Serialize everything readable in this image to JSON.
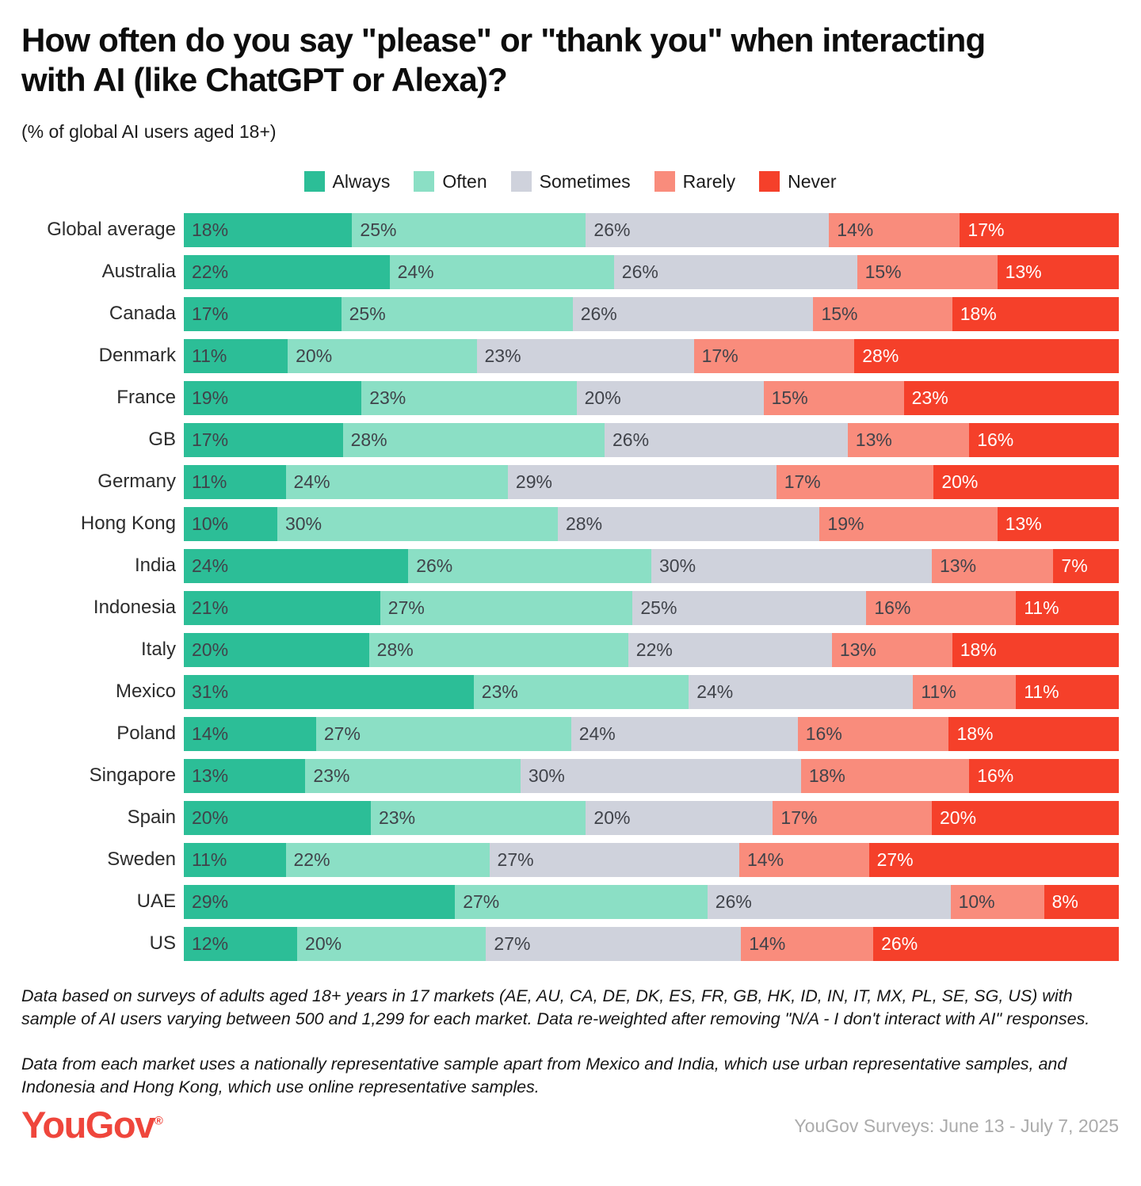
{
  "title": "How often do you say \"please\" or \"thank you\" when interacting with AI (like ChatGPT or Alexa)?",
  "subtitle": "(% of global AI users aged 18+)",
  "legend": {
    "items": [
      {
        "label": "Always",
        "color": "#2cbe97"
      },
      {
        "label": "Often",
        "color": "#8bdfc5"
      },
      {
        "label": "Sometimes",
        "color": "#cfd2dc"
      },
      {
        "label": "Rarely",
        "color": "#f98c7c"
      },
      {
        "label": "Never",
        "color": "#f5402a"
      }
    ]
  },
  "chart_data": {
    "type": "bar",
    "stacked": true,
    "orientation": "horizontal",
    "unit": "%",
    "xlim": [
      0,
      100
    ],
    "series_labels": [
      "Always",
      "Often",
      "Sometimes",
      "Rarely",
      "Never"
    ],
    "colors": [
      "#2cbe97",
      "#8bdfc5",
      "#cfd2dc",
      "#f98c7c",
      "#f5402a"
    ],
    "light_text_series_index": 4,
    "categories": [
      "Global average",
      "Australia",
      "Canada",
      "Denmark",
      "France",
      "GB",
      "Germany",
      "Hong Kong",
      "India",
      "Indonesia",
      "Italy",
      "Mexico",
      "Poland",
      "Singapore",
      "Spain",
      "Sweden",
      "UAE",
      "US"
    ],
    "rows": [
      {
        "label": "Global average",
        "values": [
          18,
          25,
          26,
          14,
          17
        ]
      },
      {
        "label": "Australia",
        "values": [
          22,
          24,
          26,
          15,
          13
        ]
      },
      {
        "label": "Canada",
        "values": [
          17,
          25,
          26,
          15,
          18
        ]
      },
      {
        "label": "Denmark",
        "values": [
          11,
          20,
          23,
          17,
          28
        ]
      },
      {
        "label": "France",
        "values": [
          19,
          23,
          20,
          15,
          23
        ]
      },
      {
        "label": "GB",
        "values": [
          17,
          28,
          26,
          13,
          16
        ]
      },
      {
        "label": "Germany",
        "values": [
          11,
          24,
          29,
          17,
          20
        ]
      },
      {
        "label": "Hong Kong",
        "values": [
          10,
          30,
          28,
          19,
          13
        ]
      },
      {
        "label": "India",
        "values": [
          24,
          26,
          30,
          13,
          7
        ]
      },
      {
        "label": "Indonesia",
        "values": [
          21,
          27,
          25,
          16,
          11
        ]
      },
      {
        "label": "Italy",
        "values": [
          20,
          28,
          22,
          13,
          18
        ]
      },
      {
        "label": "Mexico",
        "values": [
          31,
          23,
          24,
          11,
          11
        ]
      },
      {
        "label": "Poland",
        "values": [
          14,
          27,
          24,
          16,
          18
        ]
      },
      {
        "label": "Singapore",
        "values": [
          13,
          23,
          30,
          18,
          16
        ]
      },
      {
        "label": "Spain",
        "values": [
          20,
          23,
          20,
          17,
          20
        ]
      },
      {
        "label": "Sweden",
        "values": [
          11,
          22,
          27,
          14,
          27
        ]
      },
      {
        "label": "UAE",
        "values": [
          29,
          27,
          26,
          10,
          8
        ]
      },
      {
        "label": "US",
        "values": [
          12,
          20,
          27,
          14,
          26
        ]
      }
    ]
  },
  "footnotes": [
    "Data based on surveys of adults aged 18+ years in 17 markets (AE, AU, CA, DE, DK, ES, FR, GB, HK, ID, IN, IT, MX, PL, SE, SG, US) with sample of AI users varying between 500 and 1,299 for each market. Data re-weighted after removing \"N/A - I don't interact with AI\" responses.",
    "Data from each market uses a nationally representative sample apart from Mexico and India, which use urban representative samples, and Indonesia and Hong Kong, which use online representative samples."
  ],
  "footer": {
    "logo_text": "YouGov",
    "logo_reg": "®",
    "logo_color": "#ef463c",
    "source": "YouGov Surveys: June 13 - July 7, 2025"
  }
}
